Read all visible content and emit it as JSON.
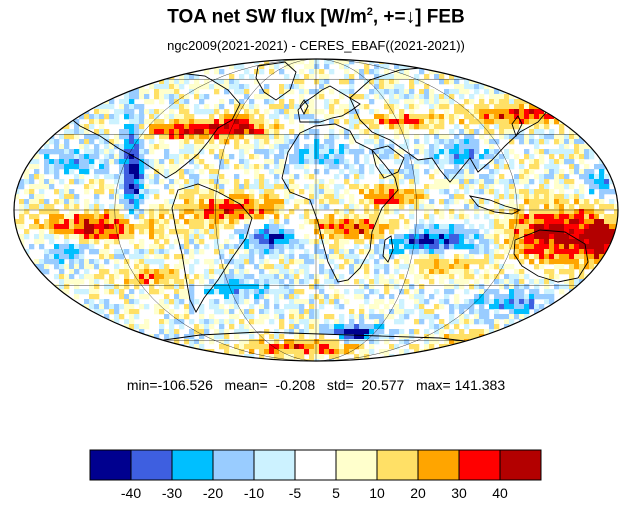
{
  "title": {
    "prefix": "TOA net SW flux [W/m",
    "sup": "2",
    "suffix": ", +=↓]  FEB"
  },
  "subtitle": "ngc2009(2021-2021) - CERES_EBAF((2021-2021))",
  "stats": "min=-106.526   mean=  -0.208   std=  20.577   max= 141.383",
  "map": {
    "projection": "Mollweide",
    "field": "TOA net SW flux difference",
    "graticule": "on",
    "coastlines": "on"
  },
  "colorbar": {
    "colors": [
      "#00008f",
      "#3e5fe0",
      "#00bfff",
      "#99ccff",
      "#ccf2ff",
      "#ffffff",
      "#ffffcc",
      "#ffe066",
      "#ffa500",
      "#ff0000",
      "#b30000"
    ],
    "tick_labels": [
      "-40",
      "-30",
      "-20",
      "-10",
      "-5",
      "5",
      "10",
      "20",
      "30",
      "40"
    ]
  },
  "chart_data": {
    "type": "heatmap",
    "title": "TOA net SW flux [W/m2, +=↓]  FEB",
    "levels": [
      -40,
      -30,
      -20,
      -10,
      -5,
      5,
      10,
      20,
      30,
      40
    ],
    "min": -106.526,
    "mean": -0.208,
    "std": 20.577,
    "max": 141.383
  }
}
